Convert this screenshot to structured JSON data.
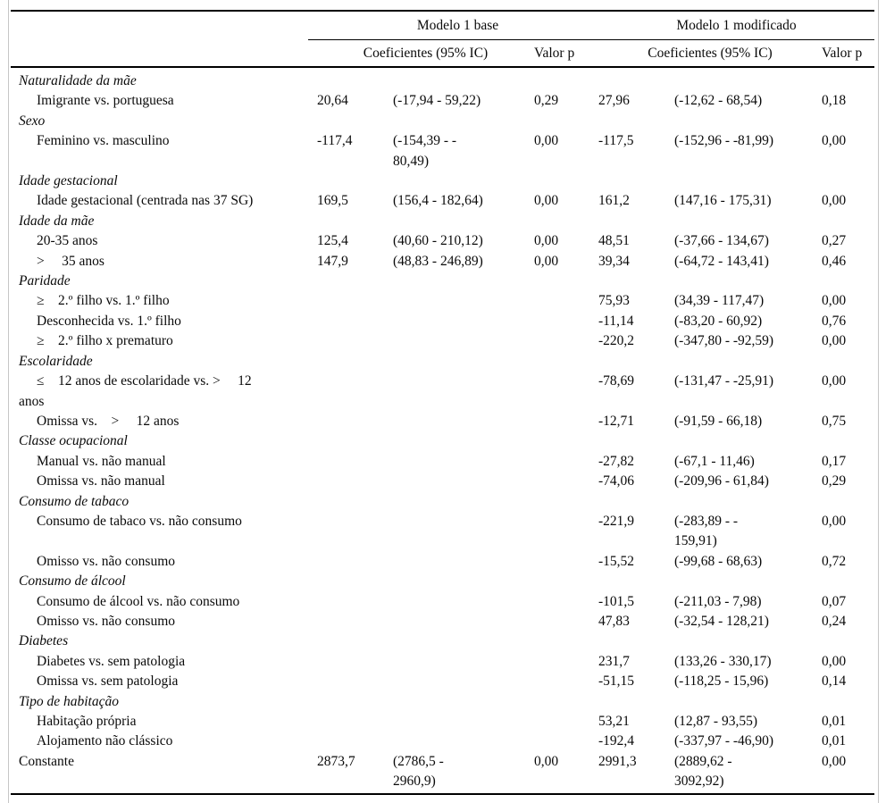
{
  "table": {
    "header": {
      "group1": "Modelo 1 base",
      "group2": "Modelo 1 modificado",
      "coef_header": "Coeficientes (95% IC)",
      "pvalue_header": "Valor p"
    },
    "rows": [
      {
        "style": "category",
        "label": "Naturalidade da mãe",
        "m1": null,
        "m2": null
      },
      {
        "style": "item",
        "label": "Imigrante vs. portuguesa",
        "m1": {
          "coef": "20,64",
          "ci": "(-17,94 - 59,22)",
          "p": "0,29"
        },
        "m2": {
          "coef": "27,96",
          "ci": "(-12,62 - 68,54)",
          "p": "0,18"
        }
      },
      {
        "style": "category",
        "label": "Sexo",
        "m1": null,
        "m2": null
      },
      {
        "style": "item",
        "label": "Feminino vs. masculino",
        "m1": {
          "coef": "-117,4",
          "ci": "(-154,39 - -\n80,49)",
          "p": "0,00"
        },
        "m2": {
          "coef": "-117,5",
          "ci": "(-152,96 - -81,99)",
          "p": "0,00"
        }
      },
      {
        "style": "category",
        "label": "Idade gestacional",
        "m1": null,
        "m2": null
      },
      {
        "style": "item",
        "label": "Idade gestacional (centrada nas 37 SG)",
        "m1": {
          "coef": "169,5",
          "ci": "(156,4 - 182,64)",
          "p": "0,00"
        },
        "m2": {
          "coef": "161,2",
          "ci": "(147,16 - 175,31)",
          "p": "0,00"
        }
      },
      {
        "style": "category",
        "label": "Idade da mãe",
        "m1": null,
        "m2": null
      },
      {
        "style": "item",
        "label": "20-35 anos",
        "m1": {
          "coef": "125,4",
          "ci": "(40,60 - 210,12)",
          "p": "0,00"
        },
        "m2": {
          "coef": "48,51",
          "ci": "(-37,66 - 134,67)",
          "p": "0,27"
        }
      },
      {
        "style": "item",
        "label": ">     35 anos",
        "m1": {
          "coef": "147,9",
          "ci": "(48,83 - 246,89)",
          "p": "0,00"
        },
        "m2": {
          "coef": "39,34",
          "ci": "(-64,72 - 143,41)",
          "p": "0,46"
        }
      },
      {
        "style": "category",
        "label": "Paridade",
        "m1": null,
        "m2": null
      },
      {
        "style": "item",
        "label": "≥    2.º filho vs. 1.º filho",
        "m1": null,
        "m2": {
          "coef": "75,93",
          "ci": "(34,39 - 117,47)",
          "p": "0,00"
        }
      },
      {
        "style": "item",
        "label": "Desconhecida vs. 1.º filho",
        "m1": null,
        "m2": {
          "coef": "-11,14",
          "ci": "(-83,20 - 60,92)",
          "p": "0,76"
        }
      },
      {
        "style": "item",
        "label": "≥    2.º filho x prematuro",
        "m1": null,
        "m2": {
          "coef": "-220,2",
          "ci": "(-347,80 - -92,59)",
          "p": "0,00"
        }
      },
      {
        "style": "category",
        "label": "Escolaridade",
        "m1": null,
        "m2": null
      },
      {
        "style": "item",
        "label": "≤    12 anos de escolaridade vs. >     12\nanos",
        "m1": null,
        "m2": {
          "coef": "-78,69",
          "ci": "(-131,47 - -25,91)",
          "p": "0,00"
        }
      },
      {
        "style": "item",
        "label": "Omissa vs.    >     12 anos",
        "m1": null,
        "m2": {
          "coef": "-12,71",
          "ci": "(-91,59 - 66,18)",
          "p": "0,75"
        }
      },
      {
        "style": "category",
        "label": "Classe ocupacional",
        "m1": null,
        "m2": null
      },
      {
        "style": "item",
        "label": "Manual vs. não manual",
        "m1": null,
        "m2": {
          "coef": "-27,82",
          "ci": "(-67,1 - 11,46)",
          "p": "0,17"
        }
      },
      {
        "style": "item",
        "label": "Omissa vs. não manual",
        "m1": null,
        "m2": {
          "coef": "-74,06",
          "ci": "(-209,96 - 61,84)",
          "p": "0,29"
        }
      },
      {
        "style": "category",
        "label": "Consumo de tabaco",
        "m1": null,
        "m2": null
      },
      {
        "style": "item",
        "label": "Consumo de tabaco vs. não consumo",
        "m1": null,
        "m2": {
          "coef": "-221,9",
          "ci": "(-283,89 - -\n159,91)",
          "p": "0,00"
        }
      },
      {
        "style": "item",
        "label": "Omisso vs. não consumo",
        "m1": null,
        "m2": {
          "coef": "-15,52",
          "ci": "(-99,68 - 68,63)",
          "p": "0,72"
        }
      },
      {
        "style": "category",
        "label": "Consumo de álcool",
        "m1": null,
        "m2": null
      },
      {
        "style": "item",
        "label": "Consumo de álcool vs. não consumo",
        "m1": null,
        "m2": {
          "coef": "-101,5",
          "ci": "(-211,03 - 7,98)",
          "p": "0,07"
        }
      },
      {
        "style": "item",
        "label": "Omisso vs. não consumo",
        "m1": null,
        "m2": {
          "coef": "47,83",
          "ci": "(-32,54 - 128,21)",
          "p": "0,24"
        }
      },
      {
        "style": "category",
        "label": "Diabetes",
        "m1": null,
        "m2": null
      },
      {
        "style": "item",
        "label": "Diabetes vs. sem patologia",
        "m1": null,
        "m2": {
          "coef": "231,7",
          "ci": "(133,26 - 330,17)",
          "p": "0,00"
        }
      },
      {
        "style": "item",
        "label": "Omissa vs. sem patologia",
        "m1": null,
        "m2": {
          "coef": "-51,15",
          "ci": "(-118,25 - 15,96)",
          "p": "0,14"
        }
      },
      {
        "style": "category",
        "label": "Tipo de habitação",
        "m1": null,
        "m2": null
      },
      {
        "style": "item",
        "label": "Habitação própria",
        "m1": null,
        "m2": {
          "coef": "53,21",
          "ci": "(12,87 - 93,55)",
          "p": "0,01"
        }
      },
      {
        "style": "item",
        "label": "Alojamento não clássico",
        "m1": null,
        "m2": {
          "coef": "-192,4",
          "ci": "(-337,97 - -46,90)",
          "p": "0,01"
        }
      },
      {
        "style": "plain",
        "label": "Constante",
        "m1": {
          "coef": "2873,7",
          "ci": "(2786,5 -\n2960,9)",
          "p": "0,00"
        },
        "m2": {
          "coef": "2991,3",
          "ci": "(2889,62 -\n3092,92)",
          "p": "0,00"
        }
      }
    ]
  }
}
